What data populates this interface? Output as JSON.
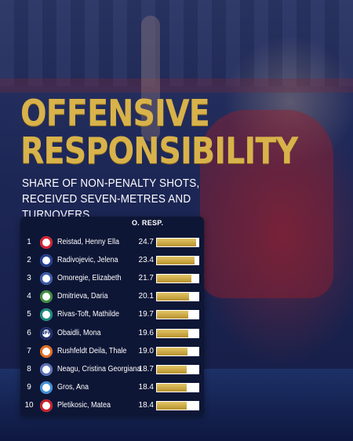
{
  "title_line1": "OFFENSIVE",
  "title_line2": "RESPONSIBILITY",
  "subtitle": "SHARE OF NON-PENALTY SHOTS, RECEIVED SEVEN-METRES AND TURNOVERS",
  "colors": {
    "gold": "#d8b24a",
    "card": "#0e1636",
    "bar_fill": "#c9a540",
    "bar_track": "#ffffff"
  },
  "chart_data": {
    "type": "bar",
    "orientation": "horizontal",
    "value_header": "O. RESP.",
    "xlim": [
      0,
      26
    ],
    "rows": [
      {
        "rank": "1",
        "name": "Reistad, Henny Ella",
        "value": 24.7,
        "logo": "red-white-club-icon",
        "logo_color": "#d6202f"
      },
      {
        "rank": "2",
        "name": "Radivojevic, Jelena",
        "value": 23.4,
        "logo": "blue-club-icon",
        "logo_color": "#1f3f8f"
      },
      {
        "rank": "3",
        "name": "Omoregie, Elizabeth",
        "value": 21.7,
        "logo": "crest-club-icon",
        "logo_color": "#3a5aa8"
      },
      {
        "rank": "4",
        "name": "Dmitrieva, Daria",
        "value": 20.1,
        "logo": "green-club-icon",
        "logo_color": "#3e8e3a"
      },
      {
        "rank": "5",
        "name": "Rivas-Toft, Mathilde",
        "value": 19.7,
        "logo": "teal-club-icon",
        "logo_color": "#1a8a7a"
      },
      {
        "rank": "6",
        "name": "Obaidli, Mona",
        "value": 19.6,
        "logo": "nfh-club-icon",
        "logo_color": "#1d2b6b",
        "logo_text": "NFH"
      },
      {
        "rank": "7",
        "name": "Rushfeldt Deila, Thale",
        "value": 19.0,
        "logo": "orange-club-icon",
        "logo_color": "#e36b1c"
      },
      {
        "rank": "8",
        "name": "Neagu, Cristina Georgiana",
        "value": 18.7,
        "logo": "shield-club-icon",
        "logo_color": "#5a6fb8"
      },
      {
        "rank": "9",
        "name": "Gros, Ana",
        "value": 18.4,
        "logo": "lightblue-club-icon",
        "logo_color": "#3f8fd8"
      },
      {
        "rank": "10",
        "name": "Pletikosic, Matea",
        "value": 18.4,
        "logo": "red-script-club-icon",
        "logo_color": "#c8202a"
      }
    ]
  }
}
